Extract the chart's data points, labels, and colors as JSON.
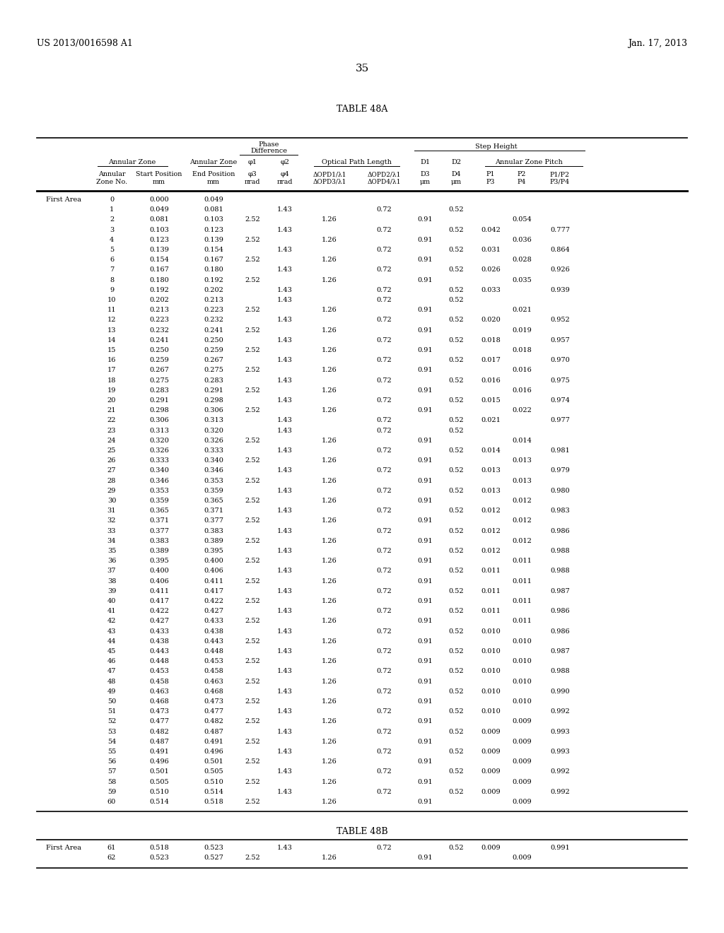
{
  "header_left": "US 2013/0016598 A1",
  "header_right": "Jan. 17, 2013",
  "page_number": "35",
  "table_a_title": "TABLE 48A",
  "table_b_title": "TABLE 48B",
  "rows_a": [
    [
      0,
      "0.000",
      "0.049",
      "",
      "",
      "",
      "",
      "",
      "",
      "",
      "",
      ""
    ],
    [
      1,
      "0.049",
      "0.081",
      "",
      "1.43",
      "",
      "0.72",
      "",
      "0.52",
      "",
      "",
      ""
    ],
    [
      2,
      "0.081",
      "0.103",
      "2.52",
      "",
      "1.26",
      "",
      "0.91",
      "",
      "",
      "0.054",
      ""
    ],
    [
      3,
      "0.103",
      "0.123",
      "",
      "1.43",
      "",
      "0.72",
      "",
      "0.52",
      "0.042",
      "",
      "0.777"
    ],
    [
      4,
      "0.123",
      "0.139",
      "2.52",
      "",
      "1.26",
      "",
      "0.91",
      "",
      "",
      "0.036",
      ""
    ],
    [
      5,
      "0.139",
      "0.154",
      "",
      "1.43",
      "",
      "0.72",
      "",
      "0.52",
      "0.031",
      "",
      "0.864"
    ],
    [
      6,
      "0.154",
      "0.167",
      "2.52",
      "",
      "1.26",
      "",
      "0.91",
      "",
      "",
      "0.028",
      ""
    ],
    [
      7,
      "0.167",
      "0.180",
      "",
      "1.43",
      "",
      "0.72",
      "",
      "0.52",
      "0.026",
      "",
      "0.926"
    ],
    [
      8,
      "0.180",
      "0.192",
      "2.52",
      "",
      "1.26",
      "",
      "0.91",
      "",
      "",
      "0.035",
      ""
    ],
    [
      9,
      "0.192",
      "0.202",
      "",
      "1.43",
      "",
      "0.72",
      "",
      "0.52",
      "0.033",
      "",
      "0.939"
    ],
    [
      10,
      "0.202",
      "0.213",
      "",
      "1.43",
      "",
      "0.72",
      "",
      "0.52",
      "",
      "",
      ""
    ],
    [
      11,
      "0.213",
      "0.223",
      "2.52",
      "",
      "1.26",
      "",
      "0.91",
      "",
      "",
      "0.021",
      ""
    ],
    [
      12,
      "0.223",
      "0.232",
      "",
      "1.43",
      "",
      "0.72",
      "",
      "0.52",
      "0.020",
      "",
      "0.952"
    ],
    [
      13,
      "0.232",
      "0.241",
      "2.52",
      "",
      "1.26",
      "",
      "0.91",
      "",
      "",
      "0.019",
      ""
    ],
    [
      14,
      "0.241",
      "0.250",
      "",
      "1.43",
      "",
      "0.72",
      "",
      "0.52",
      "0.018",
      "",
      "0.957"
    ],
    [
      15,
      "0.250",
      "0.259",
      "2.52",
      "",
      "1.26",
      "",
      "0.91",
      "",
      "",
      "0.018",
      ""
    ],
    [
      16,
      "0.259",
      "0.267",
      "",
      "1.43",
      "",
      "0.72",
      "",
      "0.52",
      "0.017",
      "",
      "0.970"
    ],
    [
      17,
      "0.267",
      "0.275",
      "2.52",
      "",
      "1.26",
      "",
      "0.91",
      "",
      "",
      "0.016",
      ""
    ],
    [
      18,
      "0.275",
      "0.283",
      "",
      "1.43",
      "",
      "0.72",
      "",
      "0.52",
      "0.016",
      "",
      "0.975"
    ],
    [
      19,
      "0.283",
      "0.291",
      "2.52",
      "",
      "1.26",
      "",
      "0.91",
      "",
      "",
      "0.016",
      ""
    ],
    [
      20,
      "0.291",
      "0.298",
      "",
      "1.43",
      "",
      "0.72",
      "",
      "0.52",
      "0.015",
      "",
      "0.974"
    ],
    [
      21,
      "0.298",
      "0.306",
      "2.52",
      "",
      "1.26",
      "",
      "0.91",
      "",
      "",
      "0.022",
      ""
    ],
    [
      22,
      "0.306",
      "0.313",
      "",
      "1.43",
      "",
      "0.72",
      "",
      "0.52",
      "0.021",
      "",
      "0.977"
    ],
    [
      23,
      "0.313",
      "0.320",
      "",
      "1.43",
      "",
      "0.72",
      "",
      "0.52",
      "",
      "",
      ""
    ],
    [
      24,
      "0.320",
      "0.326",
      "2.52",
      "",
      "1.26",
      "",
      "0.91",
      "",
      "",
      "0.014",
      ""
    ],
    [
      25,
      "0.326",
      "0.333",
      "",
      "1.43",
      "",
      "0.72",
      "",
      "0.52",
      "0.014",
      "",
      "0.981"
    ],
    [
      26,
      "0.333",
      "0.340",
      "2.52",
      "",
      "1.26",
      "",
      "0.91",
      "",
      "",
      "0.013",
      ""
    ],
    [
      27,
      "0.340",
      "0.346",
      "",
      "1.43",
      "",
      "0.72",
      "",
      "0.52",
      "0.013",
      "",
      "0.979"
    ],
    [
      28,
      "0.346",
      "0.353",
      "2.52",
      "",
      "1.26",
      "",
      "0.91",
      "",
      "",
      "0.013",
      ""
    ],
    [
      29,
      "0.353",
      "0.359",
      "",
      "1.43",
      "",
      "0.72",
      "",
      "0.52",
      "0.013",
      "",
      "0.980"
    ],
    [
      30,
      "0.359",
      "0.365",
      "2.52",
      "",
      "1.26",
      "",
      "0.91",
      "",
      "",
      "0.012",
      ""
    ],
    [
      31,
      "0.365",
      "0.371",
      "",
      "1.43",
      "",
      "0.72",
      "",
      "0.52",
      "0.012",
      "",
      "0.983"
    ],
    [
      32,
      "0.371",
      "0.377",
      "2.52",
      "",
      "1.26",
      "",
      "0.91",
      "",
      "",
      "0.012",
      ""
    ],
    [
      33,
      "0.377",
      "0.383",
      "",
      "1.43",
      "",
      "0.72",
      "",
      "0.52",
      "0.012",
      "",
      "0.986"
    ],
    [
      34,
      "0.383",
      "0.389",
      "2.52",
      "",
      "1.26",
      "",
      "0.91",
      "",
      "",
      "0.012",
      ""
    ],
    [
      35,
      "0.389",
      "0.395",
      "",
      "1.43",
      "",
      "0.72",
      "",
      "0.52",
      "0.012",
      "",
      "0.988"
    ],
    [
      36,
      "0.395",
      "0.400",
      "2.52",
      "",
      "1.26",
      "",
      "0.91",
      "",
      "",
      "0.011",
      ""
    ],
    [
      37,
      "0.400",
      "0.406",
      "",
      "1.43",
      "",
      "0.72",
      "",
      "0.52",
      "0.011",
      "",
      "0.988"
    ],
    [
      38,
      "0.406",
      "0.411",
      "2.52",
      "",
      "1.26",
      "",
      "0.91",
      "",
      "",
      "0.011",
      ""
    ],
    [
      39,
      "0.411",
      "0.417",
      "",
      "1.43",
      "",
      "0.72",
      "",
      "0.52",
      "0.011",
      "",
      "0.987"
    ],
    [
      40,
      "0.417",
      "0.422",
      "2.52",
      "",
      "1.26",
      "",
      "0.91",
      "",
      "",
      "0.011",
      ""
    ],
    [
      41,
      "0.422",
      "0.427",
      "",
      "1.43",
      "",
      "0.72",
      "",
      "0.52",
      "0.011",
      "",
      "0.986"
    ],
    [
      42,
      "0.427",
      "0.433",
      "2.52",
      "",
      "1.26",
      "",
      "0.91",
      "",
      "",
      "0.011",
      ""
    ],
    [
      43,
      "0.433",
      "0.438",
      "",
      "1.43",
      "",
      "0.72",
      "",
      "0.52",
      "0.010",
      "",
      "0.986"
    ],
    [
      44,
      "0.438",
      "0.443",
      "2.52",
      "",
      "1.26",
      "",
      "0.91",
      "",
      "",
      "0.010",
      ""
    ],
    [
      45,
      "0.443",
      "0.448",
      "",
      "1.43",
      "",
      "0.72",
      "",
      "0.52",
      "0.010",
      "",
      "0.987"
    ],
    [
      46,
      "0.448",
      "0.453",
      "2.52",
      "",
      "1.26",
      "",
      "0.91",
      "",
      "",
      "0.010",
      ""
    ],
    [
      47,
      "0.453",
      "0.458",
      "",
      "1.43",
      "",
      "0.72",
      "",
      "0.52",
      "0.010",
      "",
      "0.988"
    ],
    [
      48,
      "0.458",
      "0.463",
      "2.52",
      "",
      "1.26",
      "",
      "0.91",
      "",
      "",
      "0.010",
      ""
    ],
    [
      49,
      "0.463",
      "0.468",
      "",
      "1.43",
      "",
      "0.72",
      "",
      "0.52",
      "0.010",
      "",
      "0.990"
    ],
    [
      50,
      "0.468",
      "0.473",
      "2.52",
      "",
      "1.26",
      "",
      "0.91",
      "",
      "",
      "0.010",
      ""
    ],
    [
      51,
      "0.473",
      "0.477",
      "",
      "1.43",
      "",
      "0.72",
      "",
      "0.52",
      "0.010",
      "",
      "0.992"
    ],
    [
      52,
      "0.477",
      "0.482",
      "2.52",
      "",
      "1.26",
      "",
      "0.91",
      "",
      "",
      "0.009",
      ""
    ],
    [
      53,
      "0.482",
      "0.487",
      "",
      "1.43",
      "",
      "0.72",
      "",
      "0.52",
      "0.009",
      "",
      "0.993"
    ],
    [
      54,
      "0.487",
      "0.491",
      "2.52",
      "",
      "1.26",
      "",
      "0.91",
      "",
      "",
      "0.009",
      ""
    ],
    [
      55,
      "0.491",
      "0.496",
      "",
      "1.43",
      "",
      "0.72",
      "",
      "0.52",
      "0.009",
      "",
      "0.993"
    ],
    [
      56,
      "0.496",
      "0.501",
      "2.52",
      "",
      "1.26",
      "",
      "0.91",
      "",
      "",
      "0.009",
      ""
    ],
    [
      57,
      "0.501",
      "0.505",
      "",
      "1.43",
      "",
      "0.72",
      "",
      "0.52",
      "0.009",
      "",
      "0.992"
    ],
    [
      58,
      "0.505",
      "0.510",
      "2.52",
      "",
      "1.26",
      "",
      "0.91",
      "",
      "",
      "0.009",
      ""
    ],
    [
      59,
      "0.510",
      "0.514",
      "",
      "1.43",
      "",
      "0.72",
      "",
      "0.52",
      "0.009",
      "",
      "0.992"
    ],
    [
      60,
      "0.514",
      "0.518",
      "2.52",
      "",
      "1.26",
      "",
      "0.91",
      "",
      "",
      "0.009",
      ""
    ]
  ]
}
